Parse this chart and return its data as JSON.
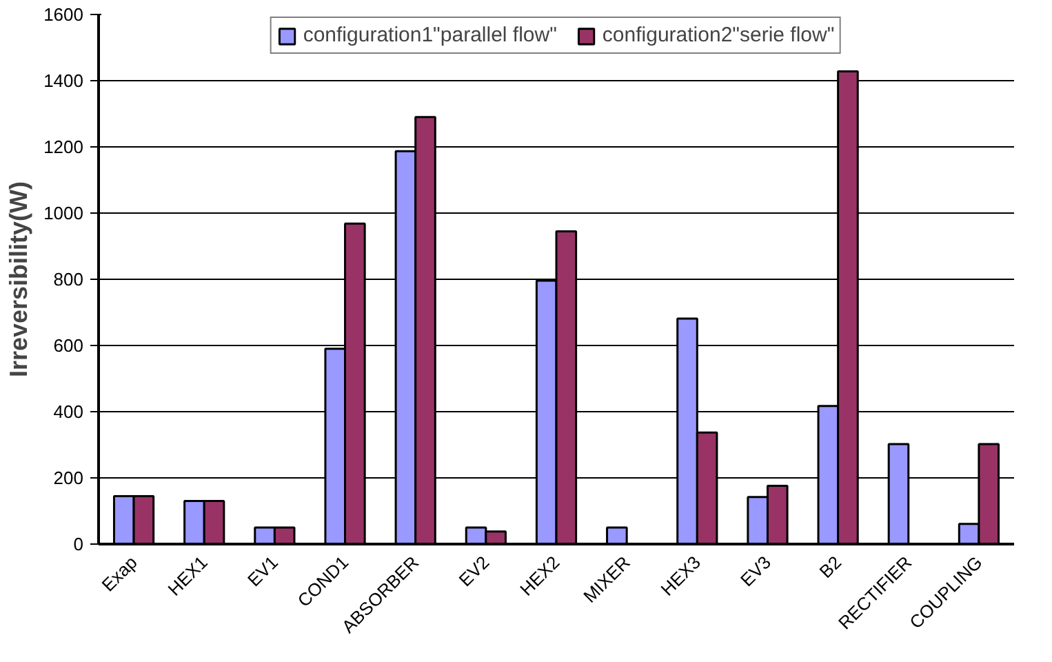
{
  "chart_data": {
    "type": "bar",
    "ylabel": "Irreversibility(W)",
    "categories": [
      "Exap",
      "HEX1",
      "EV1",
      "COND1",
      "ABSORBER",
      "EV2",
      "HEX2",
      "MIXER",
      "HEX3",
      "EV3",
      "B2",
      "RECTIFIER",
      "COUPLING"
    ],
    "series": [
      {
        "name": "configuration1\"parallel flow\"",
        "color": "#9999ff",
        "values": [
          145,
          130,
          50,
          590,
          1187,
          50,
          796,
          50,
          681,
          142,
          417,
          302,
          61
        ]
      },
      {
        "name": "configuration2\"serie flow\"",
        "color": "#993366",
        "values": [
          145,
          130,
          50,
          968,
          1290,
          38,
          945,
          null,
          337,
          176,
          1428,
          null,
          302
        ]
      }
    ],
    "ylim": [
      0,
      1600
    ],
    "yticks": [
      0,
      200,
      400,
      600,
      800,
      1000,
      1200,
      1400,
      1600
    ],
    "grid": "y",
    "legend": "top"
  }
}
